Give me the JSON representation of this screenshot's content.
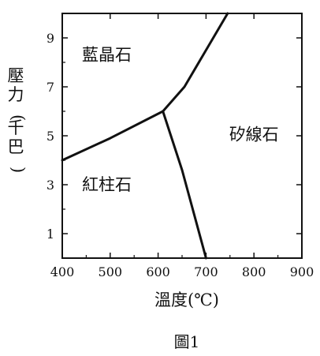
{
  "chart_data": {
    "type": "phase-diagram",
    "caption": "圖1",
    "xlabel": "溫度(℃)",
    "ylabel": "壓力(千巴)",
    "xlim": [
      400,
      900
    ],
    "ylim": [
      0,
      10
    ],
    "xticks": [
      400,
      500,
      600,
      700,
      800,
      900
    ],
    "yticks": [
      1,
      3,
      5,
      7,
      9
    ],
    "line_color": "#111111",
    "regions": [
      {
        "key": "kyanite",
        "label": "藍晶石",
        "at": [
          493,
          8.3
        ]
      },
      {
        "key": "sillimanite",
        "label": "矽線石",
        "at": [
          800,
          5.05
        ]
      },
      {
        "key": "andalusite",
        "label": "紅柱石",
        "at": [
          493,
          3.0
        ]
      }
    ],
    "boundaries": [
      {
        "key": "kyanite-andalusite",
        "points": [
          [
            400,
            4.0
          ],
          [
            500,
            4.9
          ],
          [
            610,
            6.0
          ]
        ]
      },
      {
        "key": "kyanite-sillimanite",
        "points": [
          [
            610,
            6.0
          ],
          [
            655,
            7.0
          ],
          [
            745,
            10.0
          ]
        ]
      },
      {
        "key": "andalusite-sillimanite",
        "points": [
          [
            610,
            6.0
          ],
          [
            650,
            3.6
          ],
          [
            700,
            0.0
          ]
        ]
      }
    ]
  }
}
